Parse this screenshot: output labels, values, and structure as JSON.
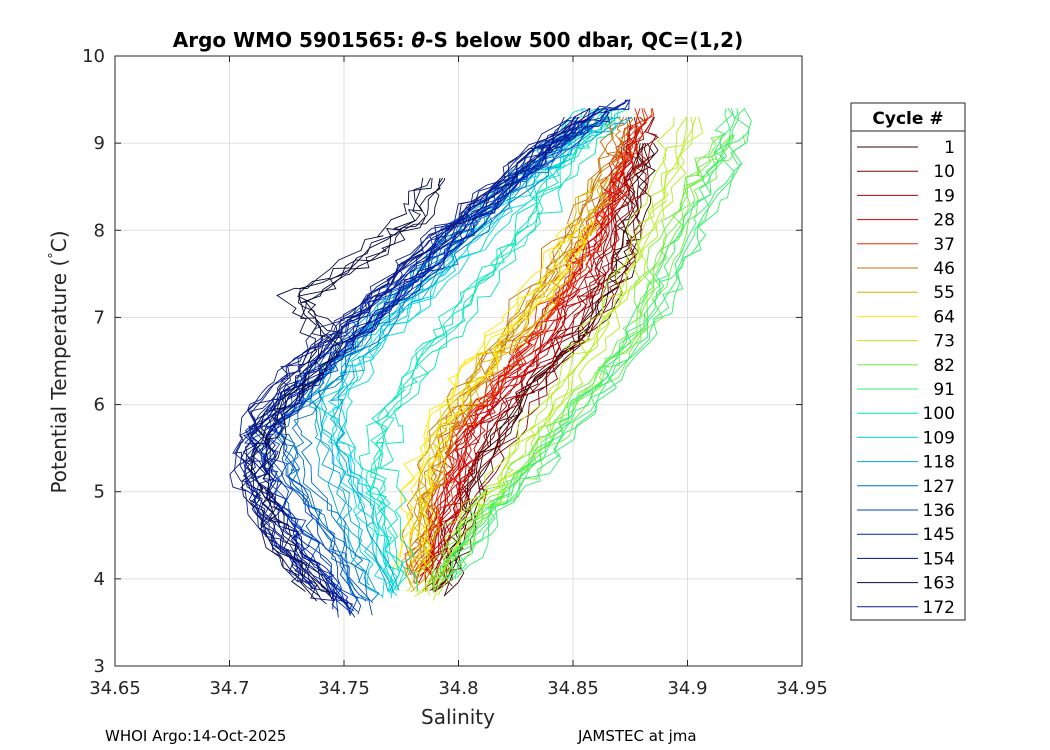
{
  "chart_data": {
    "type": "line",
    "title_prefix": "Argo WMO 5901565: ",
    "title_theta": "θ",
    "title_suffix": "-S below 500 dbar,  QC=(1,2)",
    "xlabel": "Salinity",
    "ylabel_main": "Potential Temperature (",
    "ylabel_degree": "°",
    "ylabel_unit": "C)",
    "xlim": [
      34.65,
      34.95
    ],
    "ylim": [
      3,
      10
    ],
    "xticks": [
      34.65,
      34.7,
      34.75,
      34.8,
      34.85,
      34.9,
      34.95
    ],
    "xtick_labels": [
      "34.65",
      "34.7",
      "34.75",
      "34.8",
      "34.85",
      "34.9",
      "34.95"
    ],
    "yticks": [
      3,
      4,
      5,
      6,
      7,
      8,
      9,
      10
    ],
    "ytick_labels": [
      "3",
      "4",
      "5",
      "6",
      "7",
      "8",
      "9",
      "10"
    ],
    "grid": true,
    "legend_title": "Cycle #",
    "legend_placement": "right-outside",
    "legend": [
      {
        "label": "1",
        "color": "#3a0000"
      },
      {
        "label": "10",
        "color": "#8b0000"
      },
      {
        "label": "19",
        "color": "#b80000"
      },
      {
        "label": "28",
        "color": "#d80000"
      },
      {
        "label": "37",
        "color": "#e62a00"
      },
      {
        "label": "46",
        "color": "#c86e00"
      },
      {
        "label": "55",
        "color": "#d9b000"
      },
      {
        "label": "64",
        "color": "#ffe600"
      },
      {
        "label": "73",
        "color": "#b4ee1a"
      },
      {
        "label": "82",
        "color": "#6cf03c"
      },
      {
        "label": "91",
        "color": "#2ef06a"
      },
      {
        "label": "100",
        "color": "#00e8b4"
      },
      {
        "label": "109",
        "color": "#00d8e6"
      },
      {
        "label": "118",
        "color": "#00a8d8"
      },
      {
        "label": "127",
        "color": "#0070c8"
      },
      {
        "label": "136",
        "color": "#0046c0"
      },
      {
        "label": "145",
        "color": "#0022a8"
      },
      {
        "label": "154",
        "color": "#00128c"
      },
      {
        "label": "163",
        "color": "#040a3c"
      },
      {
        "label": "172",
        "color": "#0a1e8c"
      }
    ],
    "series": [
      {
        "cycle": 1,
        "color": "#3a0000",
        "points": [
          [
            34.79,
            3.85
          ],
          [
            34.8,
            4.6
          ],
          [
            34.81,
            5.4
          ],
          [
            34.83,
            6.2
          ],
          [
            34.855,
            6.9
          ],
          [
            34.87,
            7.6
          ],
          [
            34.875,
            8.3
          ],
          [
            34.88,
            9.0
          ]
        ]
      },
      {
        "cycle": 10,
        "color": "#8b0000",
        "points": [
          [
            34.788,
            3.9
          ],
          [
            34.8,
            4.7
          ],
          [
            34.815,
            5.5
          ],
          [
            34.835,
            6.3
          ],
          [
            34.86,
            7.1
          ],
          [
            34.87,
            7.8
          ],
          [
            34.875,
            8.6
          ],
          [
            34.88,
            9.3
          ]
        ]
      },
      {
        "cycle": 19,
        "color": "#b80000",
        "points": [
          [
            34.785,
            3.95
          ],
          [
            34.795,
            4.8
          ],
          [
            34.8,
            5.5
          ],
          [
            34.82,
            6.1
          ],
          [
            34.845,
            6.9
          ],
          [
            34.86,
            7.5
          ],
          [
            34.87,
            8.4
          ],
          [
            34.878,
            9.2
          ]
        ]
      },
      {
        "cycle": 28,
        "color": "#d80000",
        "points": [
          [
            34.788,
            4.0
          ],
          [
            34.8,
            4.9
          ],
          [
            34.81,
            5.8
          ],
          [
            34.83,
            6.5
          ],
          [
            34.85,
            7.3
          ],
          [
            34.865,
            8.1
          ],
          [
            34.875,
            8.9
          ]
        ]
      },
      {
        "cycle": 37,
        "color": "#e62a00",
        "points": [
          [
            34.782,
            4.1
          ],
          [
            34.79,
            4.9
          ],
          [
            34.8,
            5.7
          ],
          [
            34.82,
            6.4
          ],
          [
            34.84,
            7.1
          ],
          [
            34.855,
            7.8
          ],
          [
            34.87,
            8.7
          ],
          [
            34.88,
            9.4
          ]
        ]
      },
      {
        "cycle": 46,
        "color": "#c86e00",
        "points": [
          [
            34.78,
            4.0
          ],
          [
            34.785,
            4.9
          ],
          [
            34.795,
            5.7
          ],
          [
            34.81,
            6.4
          ],
          [
            34.83,
            7.2
          ],
          [
            34.85,
            8.0
          ],
          [
            34.865,
            8.8
          ],
          [
            34.87,
            9.3
          ]
        ]
      },
      {
        "cycle": 55,
        "color": "#d9b000",
        "points": [
          [
            34.78,
            3.9
          ],
          [
            34.782,
            4.8
          ],
          [
            34.79,
            5.6
          ],
          [
            34.805,
            6.3
          ],
          [
            34.83,
            7.0
          ],
          [
            34.85,
            7.8
          ],
          [
            34.86,
            8.6
          ]
        ]
      },
      {
        "cycle": 64,
        "color": "#ffe600",
        "points": [
          [
            34.78,
            4.1
          ],
          [
            34.782,
            5.0
          ],
          [
            34.792,
            5.8
          ],
          [
            34.81,
            6.5
          ],
          [
            34.835,
            7.3
          ],
          [
            34.855,
            8.1
          ]
        ]
      },
      {
        "cycle": 73,
        "color": "#b4ee1a",
        "points": [
          [
            34.785,
            3.8
          ],
          [
            34.8,
            4.6
          ],
          [
            34.82,
            5.2
          ],
          [
            34.84,
            6.0
          ],
          [
            34.86,
            6.8
          ],
          [
            34.875,
            7.6
          ],
          [
            34.89,
            8.5
          ],
          [
            34.9,
            9.3
          ]
        ]
      },
      {
        "cycle": 82,
        "color": "#6cf03c",
        "points": [
          [
            34.79,
            3.9
          ],
          [
            34.81,
            4.7
          ],
          [
            34.83,
            5.3
          ],
          [
            34.855,
            6.1
          ],
          [
            34.88,
            6.9
          ],
          [
            34.89,
            7.8
          ],
          [
            34.905,
            8.6
          ],
          [
            34.92,
            9.1
          ]
        ]
      },
      {
        "cycle": 91,
        "color": "#2ef06a",
        "points": [
          [
            34.795,
            4.0
          ],
          [
            34.815,
            4.8
          ],
          [
            34.84,
            5.5
          ],
          [
            34.865,
            6.3
          ],
          [
            34.885,
            7.1
          ],
          [
            34.9,
            7.9
          ],
          [
            34.915,
            8.7
          ],
          [
            34.92,
            9.4
          ]
        ]
      },
      {
        "cycle": 100,
        "color": "#00e8b4",
        "points": [
          [
            34.775,
            3.9
          ],
          [
            34.77,
            4.7
          ],
          [
            34.765,
            5.3
          ],
          [
            34.77,
            5.9
          ],
          [
            34.79,
            6.6
          ],
          [
            34.81,
            7.3
          ],
          [
            34.83,
            8.0
          ],
          [
            34.85,
            8.8
          ],
          [
            34.87,
            9.4
          ]
        ]
      },
      {
        "cycle": 109,
        "color": "#00d8e6",
        "points": [
          [
            34.77,
            3.8
          ],
          [
            34.765,
            4.6
          ],
          [
            34.75,
            5.4
          ],
          [
            34.745,
            6.0
          ],
          [
            34.76,
            6.6
          ],
          [
            34.79,
            7.4
          ],
          [
            34.82,
            8.2
          ],
          [
            34.845,
            8.9
          ],
          [
            34.86,
            9.4
          ]
        ]
      },
      {
        "cycle": 118,
        "color": "#00a8d8",
        "points": [
          [
            34.765,
            3.9
          ],
          [
            34.755,
            4.7
          ],
          [
            34.745,
            5.5
          ],
          [
            34.74,
            6.1
          ],
          [
            34.76,
            6.8
          ],
          [
            34.785,
            7.5
          ],
          [
            34.81,
            8.2
          ],
          [
            34.84,
            8.9
          ],
          [
            34.87,
            9.3
          ]
        ]
      },
      {
        "cycle": 127,
        "color": "#0070c8",
        "points": [
          [
            34.76,
            3.7
          ],
          [
            34.745,
            4.5
          ],
          [
            34.73,
            5.2
          ],
          [
            34.725,
            5.8
          ],
          [
            34.745,
            6.4
          ],
          [
            34.77,
            7.1
          ],
          [
            34.8,
            7.9
          ],
          [
            34.83,
            8.6
          ],
          [
            34.86,
            9.3
          ]
        ]
      },
      {
        "cycle": 136,
        "color": "#0046c0",
        "points": [
          [
            34.755,
            3.6
          ],
          [
            34.74,
            4.4
          ],
          [
            34.725,
            5.1
          ],
          [
            34.715,
            5.7
          ],
          [
            34.735,
            6.3
          ],
          [
            34.76,
            7.0
          ],
          [
            34.79,
            7.8
          ],
          [
            34.82,
            8.5
          ],
          [
            34.855,
            9.2
          ]
        ]
      },
      {
        "cycle": 145,
        "color": "#0022a8",
        "points": [
          [
            34.75,
            3.6
          ],
          [
            34.73,
            4.3
          ],
          [
            34.715,
            5.0
          ],
          [
            34.712,
            5.6
          ],
          [
            34.73,
            6.2
          ],
          [
            34.755,
            6.9
          ],
          [
            34.785,
            7.6
          ],
          [
            34.815,
            8.4
          ],
          [
            34.845,
            9.1
          ],
          [
            34.87,
            9.5
          ]
        ]
      },
      {
        "cycle": 154,
        "color": "#00128c",
        "points": [
          [
            34.745,
            3.7
          ],
          [
            34.725,
            4.4
          ],
          [
            34.71,
            5.1
          ],
          [
            34.713,
            5.7
          ],
          [
            34.735,
            6.4
          ],
          [
            34.765,
            7.2
          ],
          [
            34.795,
            8.0
          ],
          [
            34.83,
            8.8
          ],
          [
            34.86,
            9.4
          ]
        ]
      },
      {
        "cycle": 163,
        "color": "#040a3c",
        "points": [
          [
            34.74,
            3.8
          ],
          [
            34.72,
            4.5
          ],
          [
            34.712,
            5.2
          ],
          [
            34.72,
            5.9
          ],
          [
            34.745,
            6.7
          ],
          [
            34.73,
            7.2
          ],
          [
            34.76,
            7.7
          ],
          [
            34.78,
            8.1
          ],
          [
            34.79,
            8.6
          ]
        ]
      },
      {
        "cycle": 172,
        "color": "#0a1e8c",
        "points": [
          [
            34.735,
            3.9
          ],
          [
            34.715,
            4.6
          ],
          [
            34.705,
            5.3
          ],
          [
            34.71,
            5.9
          ],
          [
            34.73,
            6.5
          ],
          [
            34.76,
            7.2
          ],
          [
            34.79,
            7.9
          ],
          [
            34.82,
            8.6
          ],
          [
            34.85,
            9.3
          ]
        ]
      }
    ]
  },
  "footer": {
    "left": "WHOI Argo:14-Oct-2025",
    "right": "JAMSTEC at jma"
  }
}
